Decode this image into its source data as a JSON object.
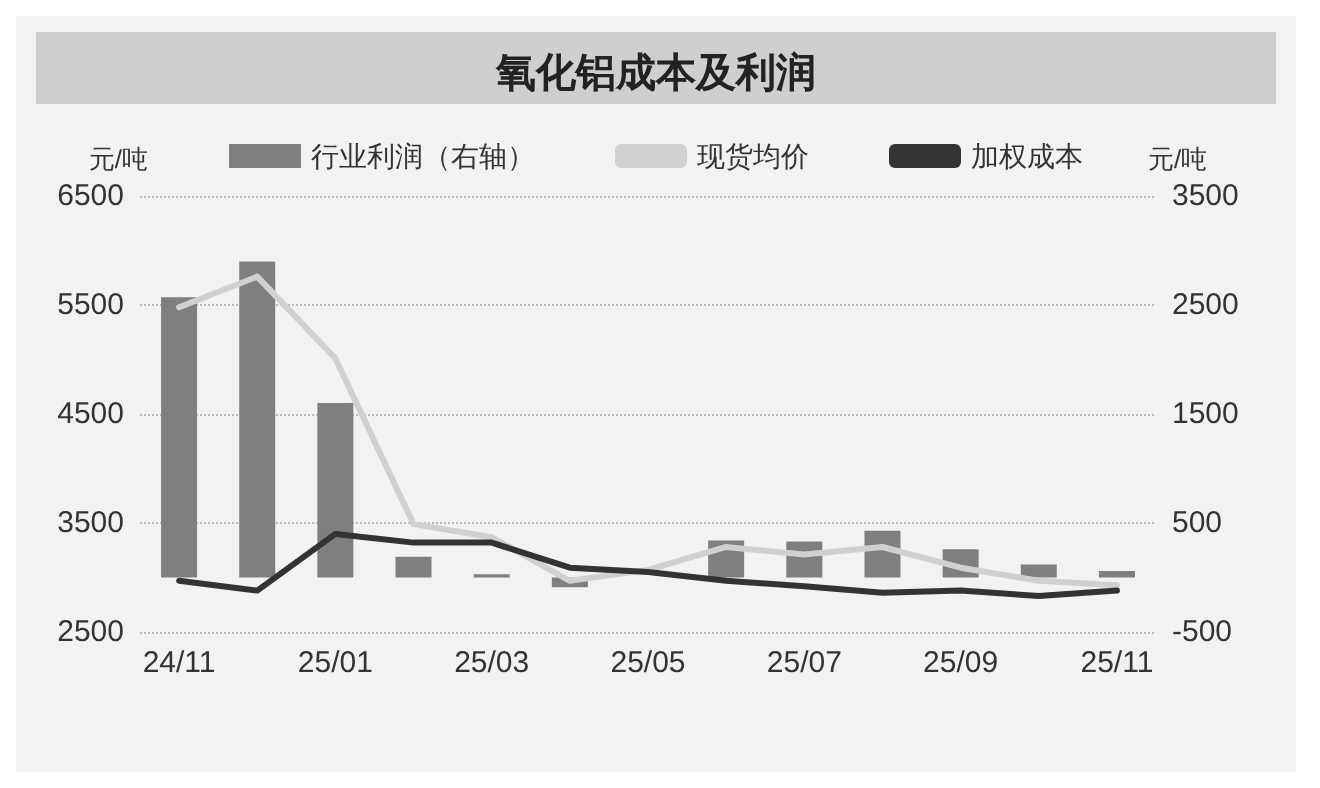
{
  "chart_data": {
    "type": "bar",
    "title": "氧化铝成本及利润",
    "ylabel": "元/吨",
    "y2label": "元/吨",
    "categories": [
      "24/11",
      null,
      "25/01",
      null,
      "25/03",
      null,
      "25/05",
      null,
      "25/07",
      null,
      "25/09",
      null,
      "25/11"
    ],
    "series": [
      {
        "name": "行业利润（右轴）",
        "axis": "y2",
        "color": "#7f7f7f",
        "values": [
          2570,
          2900,
          1600,
          190,
          30,
          -90,
          0,
          340,
          330,
          430,
          260,
          120,
          60
        ]
      },
      {
        "name": "现货均价",
        "type": "line",
        "color": "#d0d0d0",
        "values": [
          5480,
          5760,
          5010,
          3490,
          3370,
          2970,
          3070,
          3280,
          3210,
          3280,
          3090,
          2970,
          2930
        ]
      },
      {
        "name": "加权成本",
        "type": "line",
        "color": "#333333",
        "values": [
          2970,
          2880,
          3400,
          3320,
          3320,
          3090,
          3050,
          2970,
          2920,
          2860,
          2880,
          2830,
          2880
        ]
      }
    ],
    "ylim": [
      2500,
      6500
    ],
    "yticks": [
      2500,
      3500,
      4500,
      5500,
      6500
    ],
    "y2lim": [
      -500,
      3500
    ],
    "y2ticks": [
      -500,
      500,
      1500,
      2500,
      3500
    ],
    "grid": "y",
    "legend": "top",
    "marker": "none",
    "line_style": "solid"
  }
}
